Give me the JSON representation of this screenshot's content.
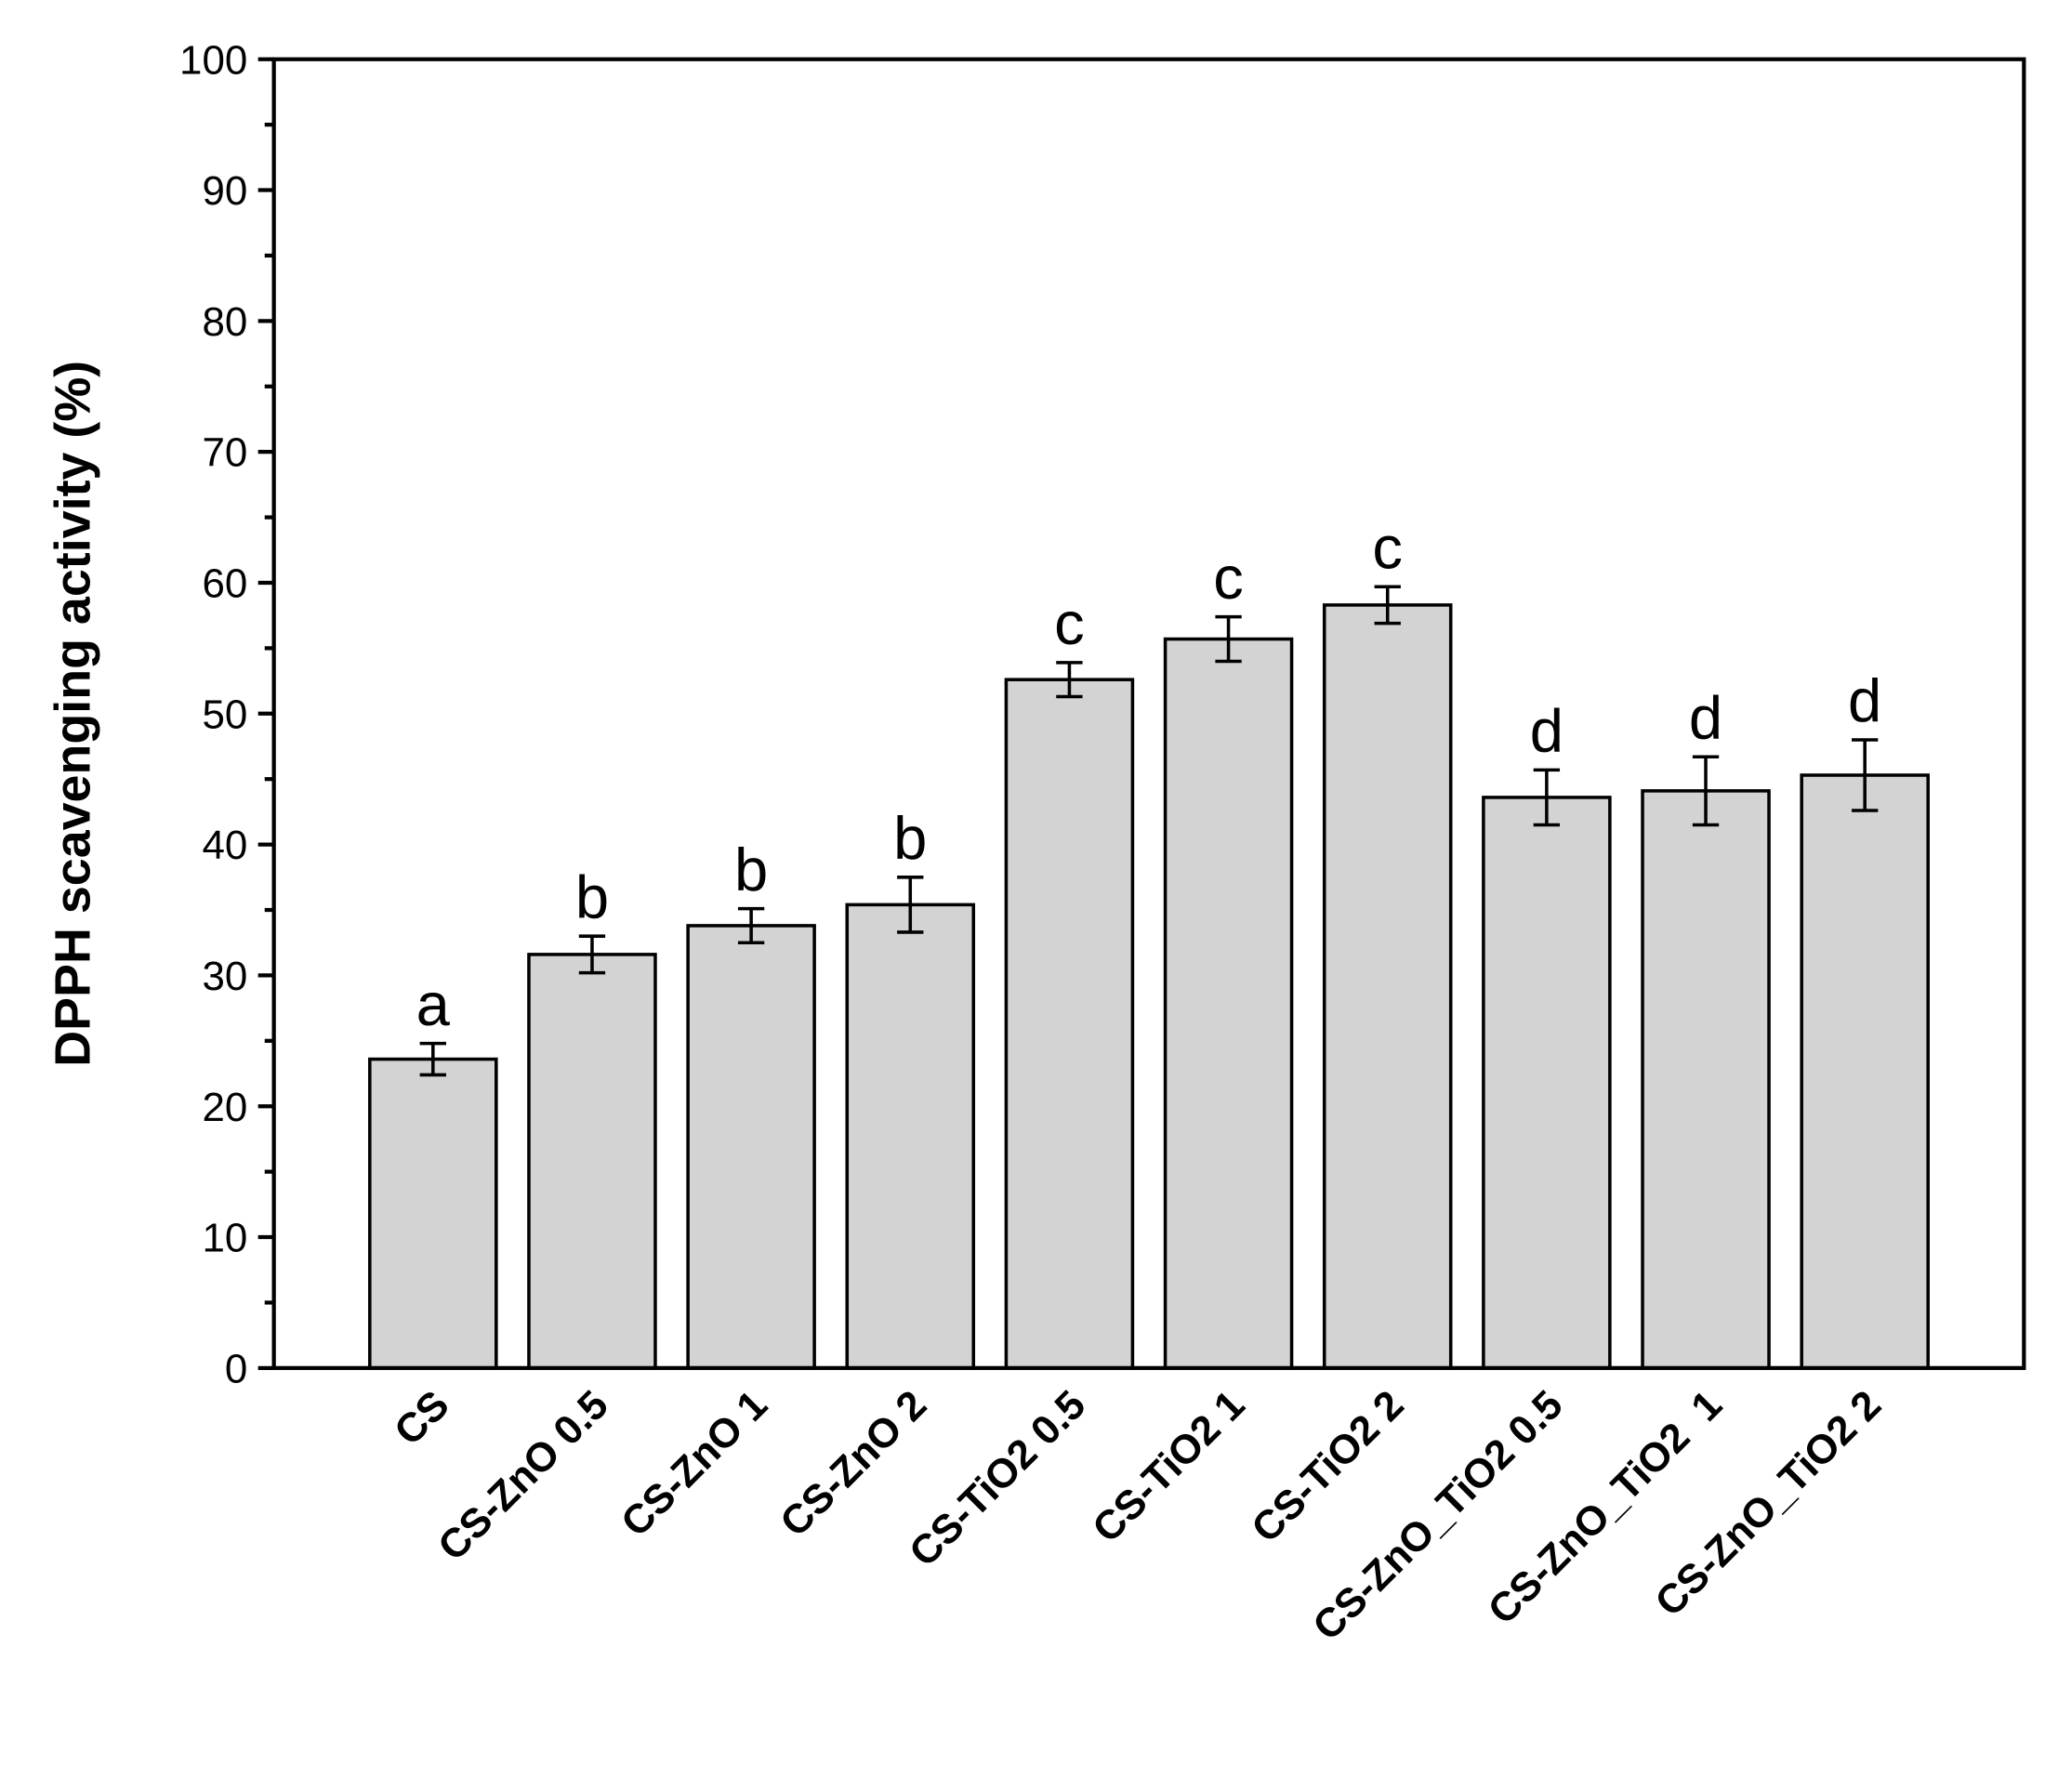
{
  "chart_data": {
    "type": "bar",
    "ylabel": "DPPH scavenging activity (%)",
    "categories": [
      "CS",
      "CS-ZnO 0.5",
      "CS-ZnO 1",
      "CS-ZnO 2",
      "CS-TiO2 0.5",
      "CS-TiO2 1",
      "CS-TiO2 2",
      "CS-ZnO_TiO2 0.5",
      "CS-ZnO_TiO2  1",
      "CS-ZnO_TiO2 2"
    ],
    "values": [
      23.6,
      31.6,
      33.8,
      35.4,
      52.6,
      55.7,
      58.3,
      43.6,
      44.1,
      45.3
    ],
    "errors": [
      1.2,
      1.4,
      1.3,
      2.1,
      1.3,
      1.7,
      1.4,
      2.1,
      2.6,
      2.7
    ],
    "annotations": [
      "a",
      "b",
      "b",
      "b",
      "c",
      "c",
      "c",
      "d",
      "d",
      "d"
    ],
    "color": "#d3d3d3",
    "ylim": [
      0,
      100
    ],
    "yticks": [
      0,
      10,
      20,
      30,
      40,
      50,
      60,
      70,
      80,
      90,
      100
    ],
    "yminorticks": [
      5,
      15,
      25,
      35,
      45,
      55,
      65,
      75,
      85,
      95
    ]
  }
}
